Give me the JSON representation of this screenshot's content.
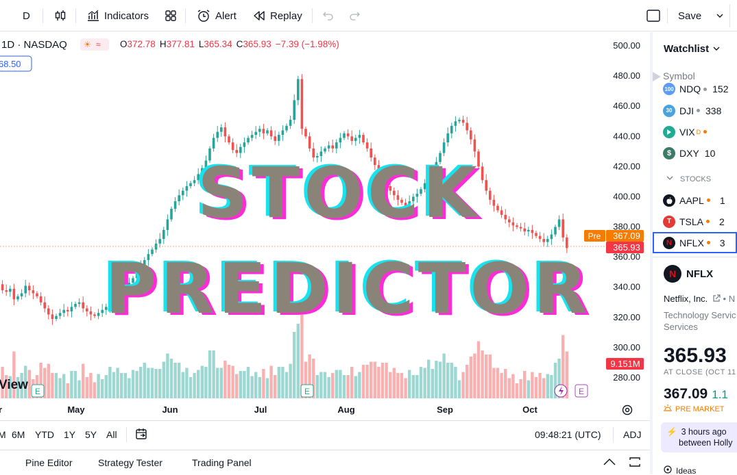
{
  "toolbar": {
    "interval": "D",
    "indicators_label": "Indicators",
    "alert_label": "Alert",
    "replay_label": "Replay",
    "save_label": "Save"
  },
  "legend": {
    "symbol": "1D · NASDAQ",
    "open_label": "O",
    "open": "372.78",
    "high_label": "H",
    "high": "377.81",
    "low_label": "L",
    "low": "365.34",
    "close_label": "C",
    "close": "365.93",
    "change": "−7.39 (−1.98%)",
    "input_value": "68.50"
  },
  "price_axis": {
    "ticks": [
      "500.00",
      "480.00",
      "460.00",
      "440.00",
      "420.00",
      "400.00",
      "380.00",
      "360.00",
      "340.00",
      "320.00",
      "300.00",
      "280.00"
    ],
    "pre_label": "Pre",
    "pre_price": "367.09",
    "last_price": "365.93",
    "volume_label": "9.151M"
  },
  "time_axis": {
    "ticks": [
      "r",
      "May",
      "Jun",
      "Jul",
      "Aug",
      "Sep",
      "Oct"
    ]
  },
  "watermark": "View",
  "overlay": {
    "line1": "STOCK",
    "line2": "PREDICTOR"
  },
  "ranges": [
    "M",
    "6M",
    "YTD",
    "1Y",
    "5Y",
    "All"
  ],
  "clock": "09:48:21 (UTC)",
  "adj_label": "ADJ",
  "footer_tabs": [
    "Pine Editor",
    "Strategy Tester",
    "Trading Panel"
  ],
  "watchlist": {
    "title": "Watchlist",
    "symbol_header": "Symbol",
    "indices": [
      {
        "badge": "100",
        "name": "NDQ",
        "value": "152",
        "color": "#5b9cf6"
      },
      {
        "badge": "30",
        "name": "DJI",
        "value": "338",
        "color": "#4aa3df"
      },
      {
        "badge": "",
        "name": "VIX",
        "sup": "D",
        "value": "",
        "color": "#22ab94"
      },
      {
        "badge": "$",
        "name": "DXY",
        "value": "10",
        "color": "#3d7a67"
      }
    ],
    "section": "STOCKS",
    "stocks": [
      {
        "name": "AAPL",
        "value": "1",
        "color": "#131722"
      },
      {
        "name": "TSLA",
        "value": "2",
        "color": "#e53935"
      },
      {
        "name": "NFLX",
        "value": "3",
        "color": "#131722"
      }
    ]
  },
  "details": {
    "symbol": "NFLX",
    "company": "Netflix, Inc.",
    "company_suffix": "• N",
    "sector_line1": "Technology Servic",
    "sector_line2": "Services",
    "price": "365.93",
    "at_close": "AT CLOSE  (OCT 11",
    "pre_price": "367.09",
    "pre_change": "1.1",
    "pre_market": "PRE MARKET",
    "news_line1": "3 hours ago",
    "news_line2": "between Holly",
    "ideas_label": "Ideas"
  },
  "chart_data": {
    "type": "candlestick",
    "symbol": "NFLX",
    "ylim": [
      270,
      505
    ],
    "x_ticks": [
      "May",
      "Jun",
      "Jul",
      "Aug",
      "Sep",
      "Oct"
    ],
    "closes": [
      342,
      338,
      337,
      339,
      332,
      334,
      336,
      341,
      338,
      336,
      334,
      330,
      326,
      322,
      319,
      321,
      323,
      325,
      324,
      327,
      329,
      330,
      326,
      324,
      322,
      321,
      323,
      325,
      327,
      330,
      333,
      336,
      339,
      341,
      343,
      346,
      350,
      354,
      358,
      362,
      365,
      369,
      372,
      378,
      385,
      392,
      397,
      401,
      404,
      407,
      409,
      411,
      415,
      419,
      424,
      432,
      439,
      443,
      446,
      440,
      436,
      431,
      429,
      433,
      436,
      439,
      441,
      443,
      445,
      442,
      444,
      440,
      437,
      441,
      444,
      447,
      451,
      464,
      478,
      445,
      440,
      432,
      426,
      427,
      430,
      432,
      434,
      432,
      436,
      439,
      442,
      440,
      437,
      439,
      441,
      436,
      432,
      426,
      421,
      416,
      411,
      407,
      404,
      401,
      398,
      396,
      394,
      397,
      400,
      402,
      405,
      409,
      414,
      418,
      423,
      429,
      436,
      442,
      447,
      450,
      451,
      449,
      444,
      438,
      430,
      420,
      411,
      404,
      398,
      394,
      391,
      388,
      385,
      383,
      381,
      380,
      379,
      377,
      378,
      376,
      374,
      372,
      370,
      372,
      375,
      380,
      385,
      373,
      366
    ]
  }
}
